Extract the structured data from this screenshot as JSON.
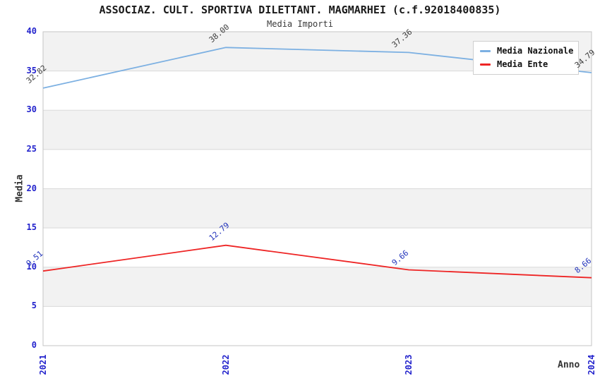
{
  "chart_data": {
    "type": "line",
    "title": "ASSOCIAZ. CULT. SPORTIVA DILETTANT. MAGMARHEI (c.f.92018400835)",
    "subtitle": "Media Importi",
    "xlabel": "Anno",
    "ylabel": "Media",
    "categories": [
      "2021",
      "2022",
      "2023",
      "2024"
    ],
    "yticks": [
      0,
      5,
      10,
      15,
      20,
      25,
      30,
      35,
      40
    ],
    "ylim": [
      0,
      40
    ],
    "grid": "horizontal-bands",
    "legend_position": "top-right",
    "series": [
      {
        "name": "Media Nazionale",
        "color": "#7cb0e2",
        "label_color": "#3c3c3c",
        "values": [
          32.82,
          38.0,
          37.36,
          34.79
        ],
        "labels": [
          "32.82",
          "38.00",
          "37.36",
          "34.79"
        ]
      },
      {
        "name": "Media Ente",
        "color": "#ee2525",
        "label_color": "#2233bb",
        "values": [
          9.51,
          12.79,
          9.66,
          8.66
        ],
        "labels": [
          "9.51",
          "12.79",
          "9.66",
          "8.66"
        ]
      }
    ],
    "colors": {
      "tick_label": "#2222cc",
      "band_alt": "#f2f2f2",
      "band_base": "#ffffff",
      "gridline": "#d9d9d9",
      "frame": "#c6c6c6",
      "title": "#1a1a1a",
      "axis_title": "#333333"
    }
  }
}
